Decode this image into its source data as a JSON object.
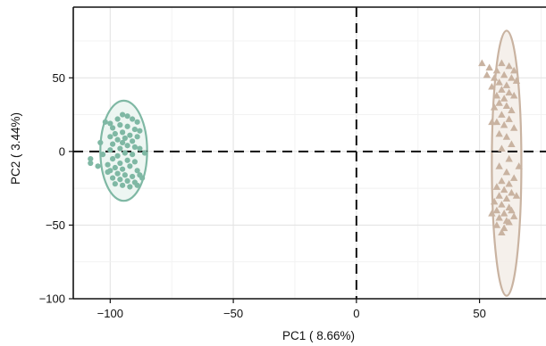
{
  "chart_data": {
    "type": "scatter",
    "title": "",
    "xlabel": "PC1 ( 8.66%)",
    "ylabel": "PC2 ( 3.44%)",
    "xlim": [
      -115,
      77
    ],
    "ylim": [
      -100,
      98
    ],
    "xticks": [
      -100,
      -50,
      0,
      50
    ],
    "yticks": [
      50,
      0,
      -50,
      -100
    ],
    "xtick_labels": [
      "−100",
      "−50",
      "0",
      "50"
    ],
    "ytick_labels": [
      "50",
      "0",
      "−50",
      "−100"
    ],
    "grid": true,
    "reference_lines": [
      {
        "orientation": "horizontal",
        "value": 0,
        "style": "dashed"
      },
      {
        "orientation": "vertical",
        "value": 0,
        "style": "dashed"
      }
    ],
    "series": [
      {
        "marker": "circle",
        "color": "#7fb8a4",
        "ellipse": {
          "center": [
            -94.5,
            0.5
          ],
          "semi_x": 9.5,
          "semi_y": 34,
          "fill": "#eaf4f0"
        },
        "points": [
          [
            -102,
            20
          ],
          [
            -100,
            19
          ],
          [
            -97,
            22
          ],
          [
            -95,
            25
          ],
          [
            -93,
            24
          ],
          [
            -91,
            22
          ],
          [
            -89,
            20
          ],
          [
            -96,
            18
          ],
          [
            -99,
            16
          ],
          [
            -93,
            17
          ],
          [
            -90,
            15
          ],
          [
            -88,
            14
          ],
          [
            -95,
            13
          ],
          [
            -98,
            12
          ],
          [
            -100,
            10
          ],
          [
            -92,
            11
          ],
          [
            -89,
            10
          ],
          [
            -94,
            9
          ],
          [
            -97,
            8
          ],
          [
            -91,
            7
          ],
          [
            -99,
            5
          ],
          [
            -95,
            6
          ],
          [
            -93,
            4
          ],
          [
            -90,
            3
          ],
          [
            -96,
            2
          ],
          [
            -100,
            1
          ],
          [
            -88,
            2
          ],
          [
            -94,
            -1
          ],
          [
            -91,
            -2
          ],
          [
            -97,
            -3
          ],
          [
            -99,
            -5
          ],
          [
            -93,
            -6
          ],
          [
            -96,
            -8
          ],
          [
            -90,
            -7
          ],
          [
            -101,
            -9
          ],
          [
            -98,
            -11
          ],
          [
            -95,
            -12
          ],
          [
            -92,
            -10
          ],
          [
            -89,
            -13
          ],
          [
            -100,
            -13
          ],
          [
            -97,
            -15
          ],
          [
            -94,
            -16
          ],
          [
            -91,
            -17
          ],
          [
            -88,
            -16
          ],
          [
            -99,
            -18
          ],
          [
            -96,
            -19
          ],
          [
            -93,
            -20
          ],
          [
            -90,
            -21
          ],
          [
            -87,
            -18
          ],
          [
            -95,
            -23
          ],
          [
            -92,
            -24
          ],
          [
            -98,
            -22
          ],
          [
            -108,
            -5
          ],
          [
            -108,
            -8
          ],
          [
            -105,
            -10
          ],
          [
            -103,
            -2
          ],
          [
            -101,
            -14
          ],
          [
            -86,
            -1
          ],
          [
            -89,
            -23
          ],
          [
            -104,
            6
          ]
        ]
      },
      {
        "marker": "triangle",
        "color": "#c9b3a1",
        "ellipse": {
          "center": [
            61,
            -8
          ],
          "semi_x": 6,
          "semi_y": 90,
          "fill": "#f3ede8"
        },
        "points": [
          [
            51,
            60
          ],
          [
            54,
            57
          ],
          [
            57,
            55
          ],
          [
            59,
            60
          ],
          [
            62,
            58
          ],
          [
            64,
            55
          ],
          [
            53,
            52
          ],
          [
            56,
            50
          ],
          [
            60,
            52
          ],
          [
            63,
            50
          ],
          [
            58,
            47
          ],
          [
            61,
            45
          ],
          [
            65,
            48
          ],
          [
            55,
            44
          ],
          [
            59,
            42
          ],
          [
            62,
            40
          ],
          [
            57,
            38
          ],
          [
            60,
            36
          ],
          [
            64,
            38
          ],
          [
            58,
            33
          ],
          [
            61,
            31
          ],
          [
            56,
            30
          ],
          [
            63,
            28
          ],
          [
            59,
            25
          ],
          [
            62,
            22
          ],
          [
            57,
            20
          ],
          [
            60,
            18
          ],
          [
            64,
            16
          ],
          [
            58,
            12
          ],
          [
            61,
            10
          ],
          [
            63,
            5
          ],
          [
            59,
            2
          ],
          [
            62,
            -5
          ],
          [
            58,
            -10
          ],
          [
            61,
            -14
          ],
          [
            64,
            -18
          ],
          [
            59,
            -20
          ],
          [
            62,
            -22
          ],
          [
            57,
            -24
          ],
          [
            60,
            -26
          ],
          [
            63,
            -28
          ],
          [
            58,
            -30
          ],
          [
            61,
            -32
          ],
          [
            65,
            -30
          ],
          [
            56,
            -34
          ],
          [
            59,
            -36
          ],
          [
            62,
            -38
          ],
          [
            57,
            -40
          ],
          [
            60,
            -42
          ],
          [
            63,
            -40
          ],
          [
            58,
            -45
          ],
          [
            61,
            -47
          ],
          [
            55,
            -42
          ],
          [
            64,
            -44
          ],
          [
            60,
            -52
          ],
          [
            57,
            -50
          ],
          [
            62,
            -48
          ],
          [
            59,
            -55
          ],
          [
            55,
            20
          ],
          [
            66,
            -10
          ]
        ]
      }
    ]
  }
}
